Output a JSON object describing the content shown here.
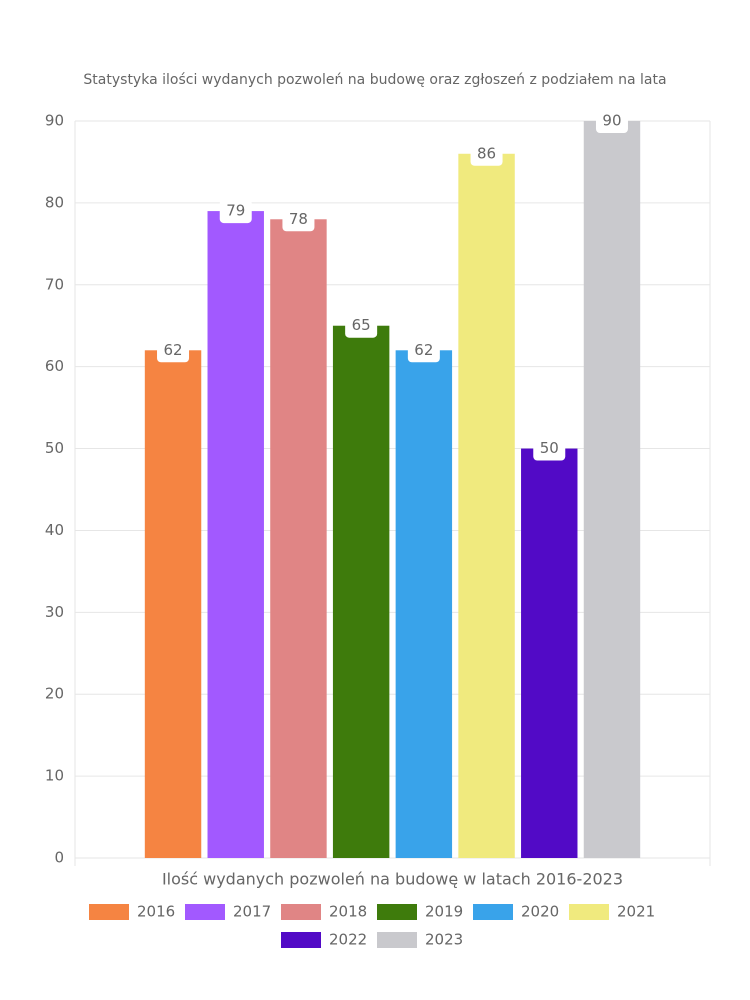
{
  "chart_data": {
    "type": "bar",
    "title": "Statystyka ilości wydanych pozwoleń na budowę oraz zgłoszeń z podziałem na lata",
    "categories": [
      "Ilość wydanych pozwoleń na budowę w latach 2016-2023"
    ],
    "series": [
      {
        "name": "2016",
        "color": "#f58442",
        "values": [
          62
        ]
      },
      {
        "name": "2017",
        "color": "#a259ff",
        "values": [
          79
        ]
      },
      {
        "name": "2018",
        "color": "#e08585",
        "values": [
          78
        ]
      },
      {
        "name": "2019",
        "color": "#3e7b0c",
        "values": [
          65
        ]
      },
      {
        "name": "2020",
        "color": "#39a3ea",
        "values": [
          62
        ]
      },
      {
        "name": "2021",
        "color": "#f0ea7e",
        "values": [
          86
        ]
      },
      {
        "name": "2022",
        "color": "#520ac6",
        "values": [
          50
        ]
      },
      {
        "name": "2023",
        "color": "#c9c9cd",
        "values": [
          90
        ]
      }
    ],
    "ylim": [
      0,
      90
    ],
    "yticks": [
      0,
      10,
      20,
      30,
      40,
      50,
      60,
      70,
      80,
      90
    ],
    "grid": true,
    "legend": "bottom"
  }
}
